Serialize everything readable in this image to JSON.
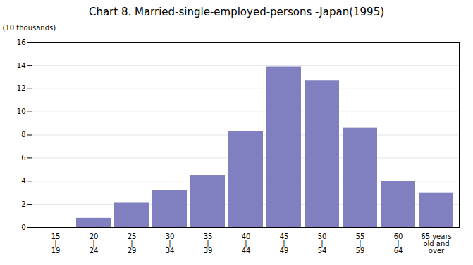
{
  "chart_data": {
    "type": "bar",
    "title": "Chart 8. Married-single-employed-persons  -Japan(1995)",
    "ylabel": "(10 thousands)",
    "categories": [
      "15\n|\n19",
      "20\n|\n24",
      "25\n|\n29",
      "30\n|\n34",
      "35\n|\n39",
      "40\n|\n44",
      "45\n|\n49",
      "50\n|\n54",
      "55\n|\n59",
      "60\n|\n64",
      "65 years\nold and\nover"
    ],
    "values": [
      0,
      0.8,
      2.1,
      3.2,
      4.5,
      8.3,
      13.9,
      12.7,
      8.6,
      4.0,
      3.0
    ],
    "color": "#8080c0",
    "ylim": [
      0,
      16
    ],
    "yticks": [
      0,
      2,
      4,
      6,
      8,
      10,
      12,
      14,
      16
    ],
    "grid": true
  }
}
